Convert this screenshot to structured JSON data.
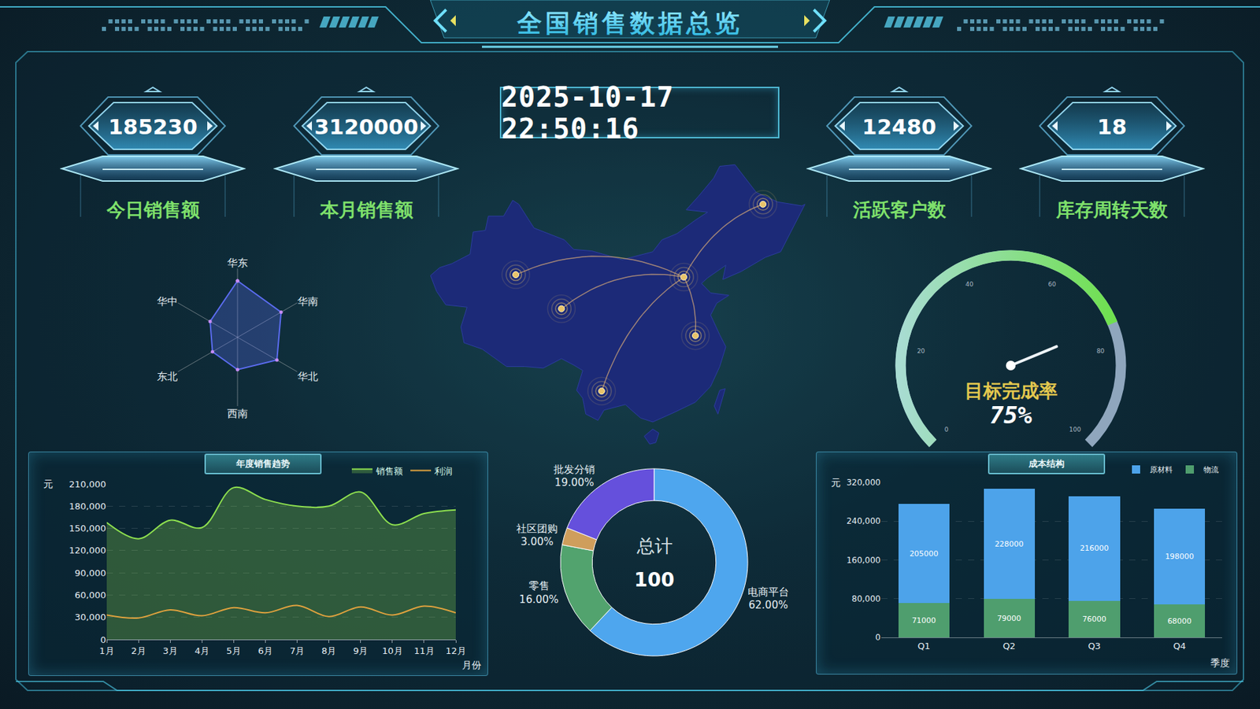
{
  "header": {
    "title": "全国销售数据总览",
    "time": "2025-10-17 22:50:16"
  },
  "kpis": [
    {
      "value": 185230,
      "label": "今日销售额"
    },
    {
      "value": 3120000,
      "label": "本月销售额"
    },
    {
      "value": 12480,
      "label": "活跃客户数"
    },
    {
      "value": 18,
      "label": "库存周转天数"
    }
  ],
  "chart_data": [
    {
      "type": "radar",
      "categories": [
        "华东",
        "华南",
        "华北",
        "西南",
        "东北",
        "华中"
      ],
      "values": [
        82,
        73,
        66,
        47,
        42,
        46
      ],
      "ylim": [
        0,
        100
      ],
      "tick_labels": "x",
      "grid": true,
      "color": "#5b6cf0",
      "marker": "circle"
    },
    {
      "type": "map",
      "hub": [
        115.1,
        39.3
      ],
      "points": [
        [
          128.1,
          48.5
        ],
        [
          87.5,
          39.6
        ],
        [
          95.0,
          35.3
        ],
        [
          117.0,
          31.9
        ],
        [
          101.6,
          24.9
        ]
      ],
      "xlim": [
        72,
        136
      ],
      "ylim": [
        17,
        55
      ],
      "tick_labels": false,
      "color": "#e8c36a"
    },
    {
      "type": "gauge",
      "label": "目标完成率",
      "values": [
        75
      ],
      "value_labels": [
        "75%"
      ],
      "ylim": [
        0,
        100
      ],
      "yticks": [
        0,
        20,
        40,
        60,
        80,
        100
      ],
      "color": "#6de04a"
    },
    {
      "type": "line",
      "title": "年度销售趋势",
      "xlabel": "月份",
      "ylabel": "元",
      "categories": [
        "1月",
        "2月",
        "3月",
        "4月",
        "5月",
        "6月",
        "7月",
        "8月",
        "9月",
        "10月",
        "11月",
        "12月"
      ],
      "series": [
        {
          "name": "销售额",
          "color": "#8ee04f",
          "values": [
            158000,
            136000,
            161000,
            151000,
            205000,
            189000,
            180000,
            180000,
            199000,
            155000,
            170000,
            175000
          ]
        },
        {
          "name": "利润",
          "color": "#e0a23e",
          "values": [
            33000,
            29000,
            40000,
            32000,
            43000,
            36000,
            46000,
            31000,
            44000,
            33000,
            45000,
            36000
          ]
        }
      ],
      "ylim": [
        0,
        210000
      ],
      "yticks": [
        0,
        {
          "value": 30000,
          "label": "30,000"
        },
        {
          "value": 60000,
          "label": "60,000"
        },
        {
          "value": 90000,
          "label": "90,000"
        },
        {
          "value": 120000,
          "label": "120,000"
        },
        {
          "value": 150000,
          "label": "150,000"
        },
        {
          "value": 180000,
          "label": "180,000"
        },
        {
          "value": 210000,
          "label": "210,000"
        }
      ],
      "grid": true,
      "legend": "top right",
      "line_style": "smooth"
    },
    {
      "type": "donut",
      "center_label": "总计",
      "center_value": 100,
      "categories": [
        "电商平台",
        "零售",
        "社区团购",
        "批发分销"
      ],
      "values": [
        62,
        16,
        3,
        19
      ],
      "value_labels": [
        "62.00%",
        "16.00%",
        "3.00%",
        "19.00%"
      ],
      "colors": [
        "#4ea6ee",
        "#52a36e",
        "#cf9e5c",
        "#6550dc"
      ],
      "data_labels": true
    },
    {
      "type": "bar",
      "title": "成本结构",
      "xlabel": "季度",
      "ylabel": "元",
      "categories": [
        "Q1",
        "Q2",
        "Q3",
        "Q4"
      ],
      "series": [
        {
          "name": "原材料",
          "color": "#4da3ea",
          "values": [
            205000,
            228000,
            216000,
            198000
          ]
        },
        {
          "name": "物流",
          "color": "#4f9e6e",
          "values": [
            71000,
            79000,
            76000,
            68000
          ]
        }
      ],
      "stacked": true,
      "data_labels": true,
      "ylim": [
        0,
        320000
      ],
      "yticks": [
        0,
        {
          "value": 80000,
          "label": "80,000"
        },
        {
          "value": 160000,
          "label": "160,000"
        },
        {
          "value": 240000,
          "label": "240,000"
        },
        {
          "value": 320000,
          "label": "320,000"
        }
      ],
      "grid": true,
      "legend": "top right"
    }
  ]
}
